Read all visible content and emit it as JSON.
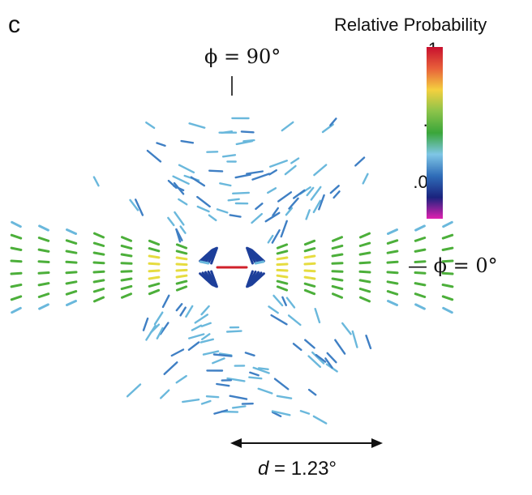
{
  "panel_label": "c",
  "colorbar": {
    "title": "Relative Probability",
    "ticks": [
      "1",
      ".1",
      ".01"
    ],
    "colors": [
      "#c8102e",
      "#e8603a",
      "#f4d03f",
      "#8bc34a",
      "#3aa63a",
      "#7fc6e6",
      "#2f6db8",
      "#1a237e",
      "#e020b0"
    ]
  },
  "labels": {
    "phi_90": "ϕ = 90°",
    "phi_0": "ϕ = 0°",
    "distance_var": "d",
    "distance_value": " = 1.23°"
  },
  "palette": {
    "red": "#d0202a",
    "yellow": "#e6dc40",
    "green": "#4caf3a",
    "light_blue": "#6ab8dc",
    "mid_blue": "#3f7fc4",
    "dark_blue": "#1d3f9a"
  }
}
